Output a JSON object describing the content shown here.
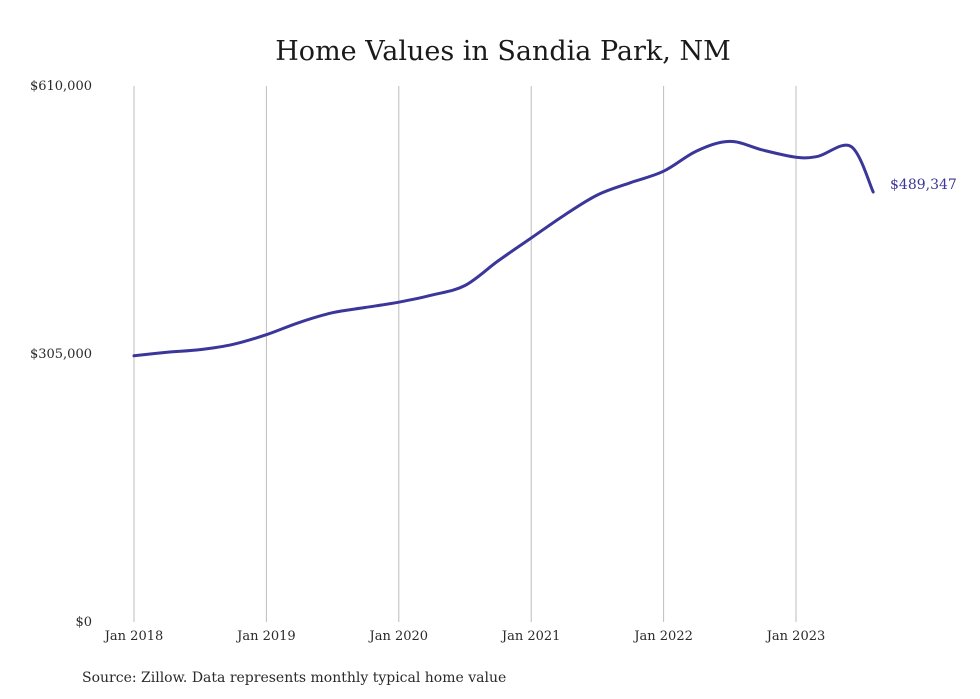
{
  "chart_data": {
    "type": "line",
    "title": "Home Values in Sandia Park, NM",
    "xlabel": "",
    "ylabel": "",
    "source": "Source: Zillow. Data represents monthly typical home value",
    "x_ticks": [
      "Jan 2018",
      "Jan 2019",
      "Jan 2020",
      "Jan 2021",
      "Jan 2022",
      "Jan 2023"
    ],
    "y_ticks": [
      "$0",
      "$305,000",
      "$610,000"
    ],
    "ylim": [
      0,
      610000
    ],
    "xlim": [
      "2018-01",
      "2023-12"
    ],
    "grid": "vertical",
    "line_color": "#3b3699",
    "end_label": "$489,347",
    "series": [
      {
        "x": [
          "2018-01",
          "2018-04",
          "2018-07",
          "2018-10",
          "2019-01",
          "2019-04",
          "2019-07",
          "2019-10",
          "2020-01",
          "2020-04",
          "2020-07",
          "2020-10",
          "2021-01",
          "2021-04",
          "2021-07",
          "2021-10",
          "2022-01",
          "2022-04",
          "2022-07",
          "2022-10",
          "2023-01",
          "2023-03",
          "2023-06",
          "2023-08"
        ],
        "values": [
          303000,
          307000,
          310000,
          316000,
          327000,
          341000,
          352000,
          358000,
          364000,
          372000,
          383000,
          411000,
          437000,
          463000,
          486000,
          500000,
          513000,
          536000,
          547000,
          537000,
          529000,
          530000,
          541000,
          489347
        ]
      }
    ]
  }
}
